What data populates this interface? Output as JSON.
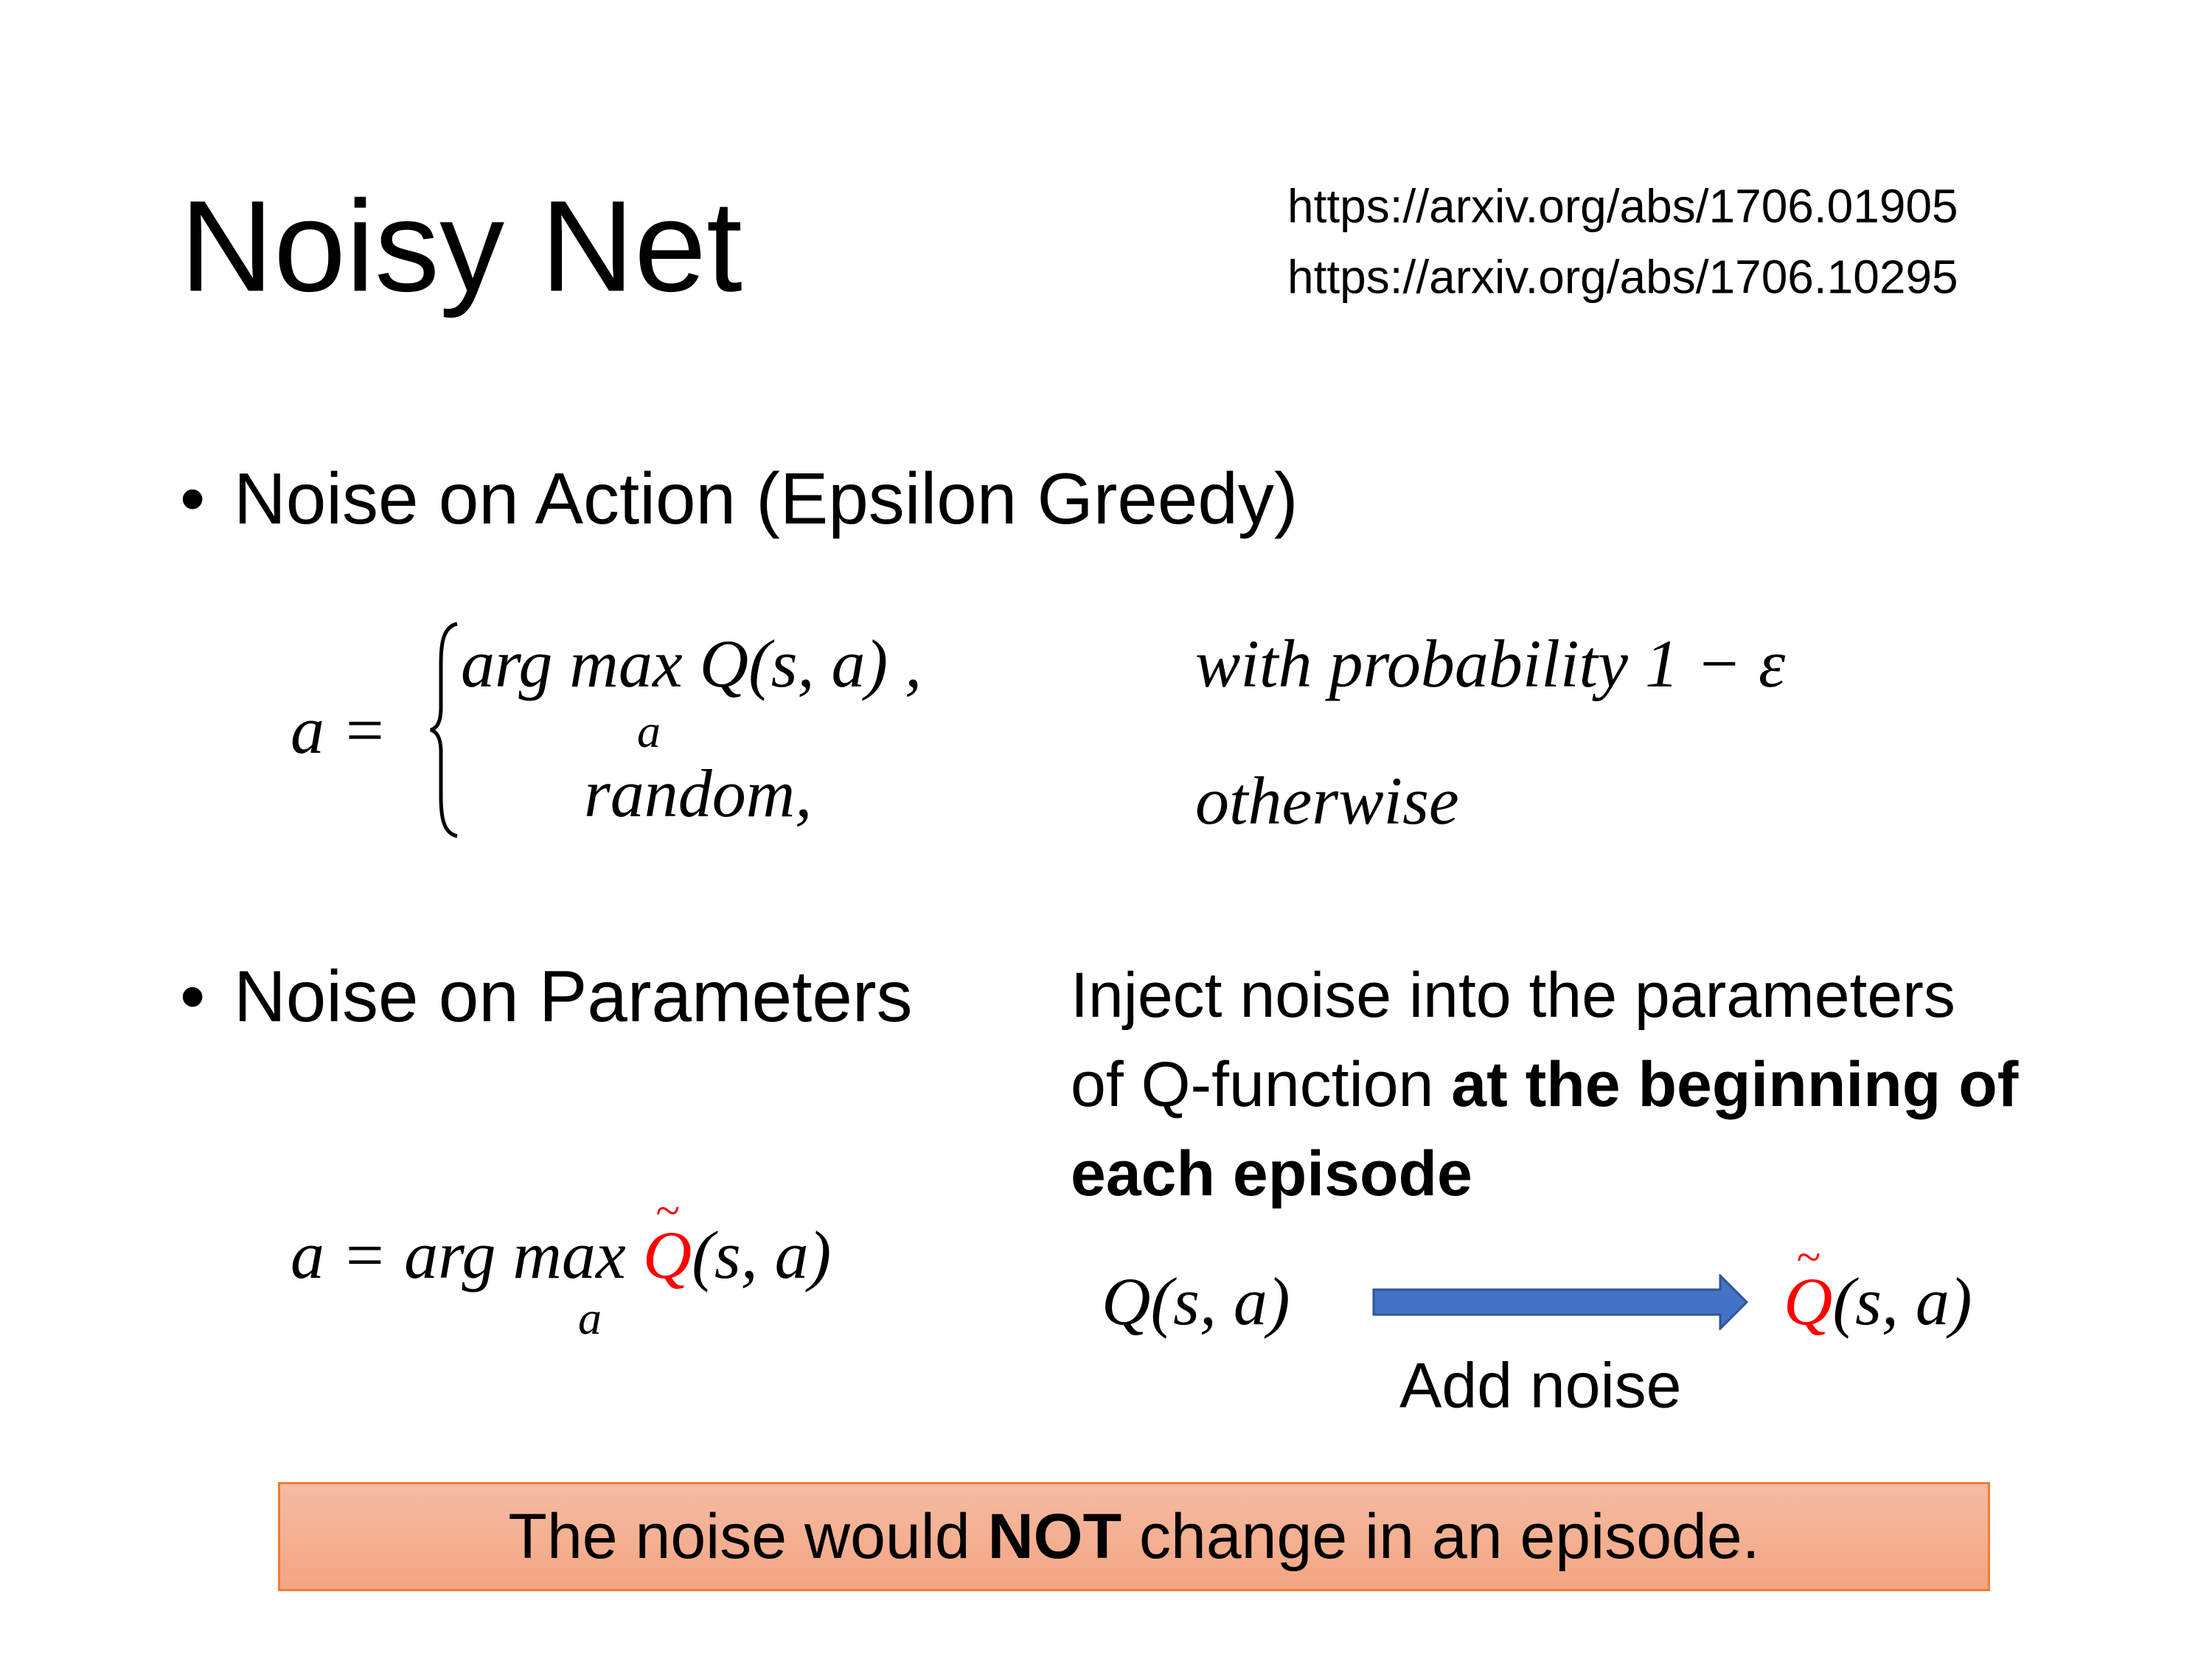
{
  "title": "Noisy Net",
  "references": [
    "https://arxiv.org/abs/1706.01905",
    "https://arxiv.org/abs/1706.10295"
  ],
  "bullets": [
    {
      "marker": "•",
      "text": "Noise on Action (Epsilon Greedy)"
    },
    {
      "marker": "•",
      "text": "Noise on Parameters"
    }
  ],
  "equation1": {
    "lhs": "a =",
    "case1_expr": "arg max Q(s, a) ,",
    "case1_sub": "a",
    "case1_cond": "with probability 1 − ε",
    "case2_expr": "random,",
    "case2_cond": "otherwise"
  },
  "description": {
    "line1": "Inject noise into the parameters",
    "line2_normal": "of Q-function ",
    "line2_bold": "at the beginning of",
    "line3_bold": "each episode"
  },
  "equation2": {
    "lhs": "a = arg max ",
    "sub": "a",
    "q": "Q",
    "tilde": "~",
    "args": "(s, a)"
  },
  "transform": {
    "from": "Q(s, a)",
    "to_q": "Q",
    "to_tilde": "~",
    "to_args": "(s, a)",
    "label": "Add noise"
  },
  "callout": {
    "before": "The noise would ",
    "bold": "NOT",
    "after": " change in an episode."
  },
  "colors": {
    "accent_red": "#ff0000",
    "arrow_blue": "#4472c4",
    "callout_border": "#ed7d31",
    "callout_fill": "#f4b097"
  }
}
